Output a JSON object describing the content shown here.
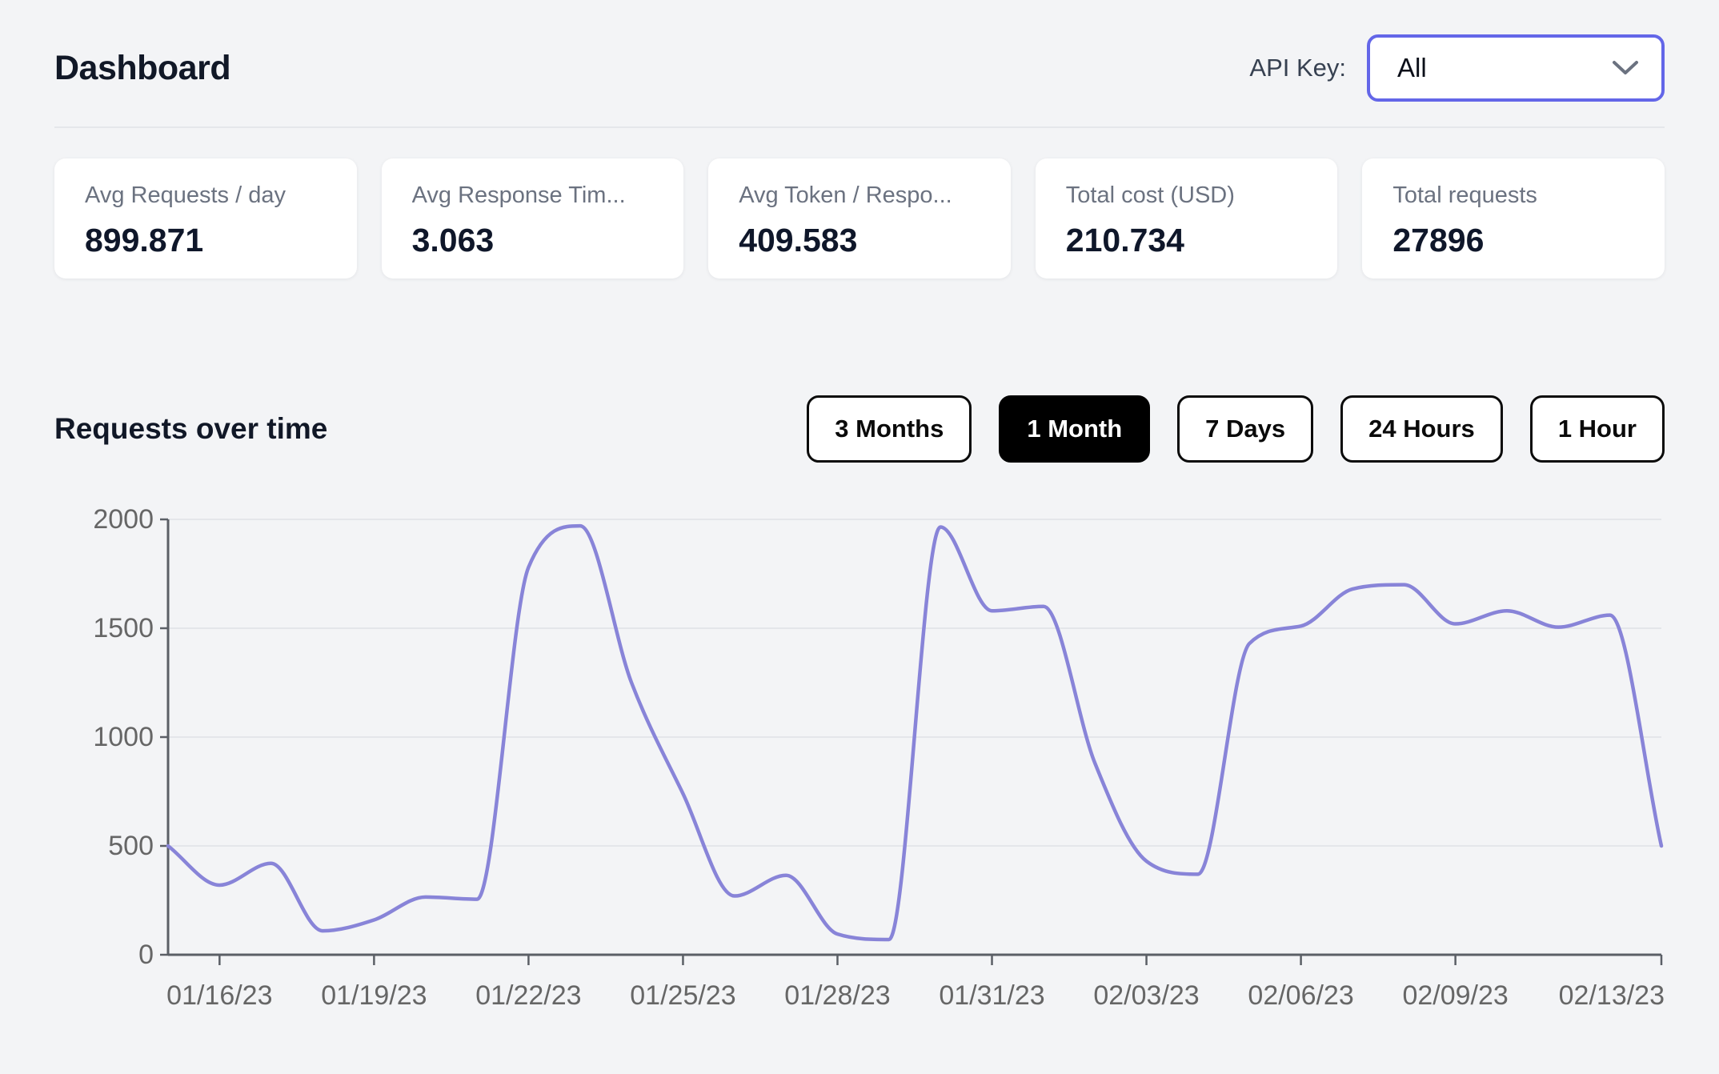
{
  "header": {
    "title": "Dashboard",
    "api_key_label": "API Key:",
    "api_key_value": "All"
  },
  "stats": [
    {
      "label": "Avg Requests / day",
      "value": "899.871"
    },
    {
      "label": "Avg Response Tim...",
      "value": "3.063"
    },
    {
      "label": "Avg Token / Respo...",
      "value": "409.583"
    },
    {
      "label": "Total cost (USD)",
      "value": "210.734"
    },
    {
      "label": "Total requests",
      "value": "27896"
    }
  ],
  "section": {
    "title": "Requests over time"
  },
  "time_buttons": [
    {
      "label": "3 Months",
      "active": false
    },
    {
      "label": "1 Month",
      "active": true
    },
    {
      "label": "7 Days",
      "active": false
    },
    {
      "label": "24 Hours",
      "active": false
    },
    {
      "label": "1 Hour",
      "active": false
    }
  ],
  "chart_data": {
    "type": "line",
    "title": "Requests over time",
    "x": [
      "01/15/23",
      "01/16/23",
      "01/17/23",
      "01/18/23",
      "01/19/23",
      "01/20/23",
      "01/21/23",
      "01/22/23",
      "01/23/23",
      "01/24/23",
      "01/25/23",
      "01/26/23",
      "01/27/23",
      "01/28/23",
      "01/29/23",
      "01/30/23",
      "01/31/23",
      "02/01/23",
      "02/02/23",
      "02/03/23",
      "02/04/23",
      "02/05/23",
      "02/06/23",
      "02/07/23",
      "02/08/23",
      "02/09/23",
      "02/10/23",
      "02/11/23",
      "02/12/23",
      "02/13/23"
    ],
    "series": [
      {
        "name": "requests",
        "values": [
          500,
          320,
          420,
          110,
          160,
          265,
          255,
          1780,
          1970,
          1250,
          740,
          270,
          365,
          95,
          70,
          1965,
          1580,
          1600,
          880,
          430,
          370,
          1430,
          1510,
          1680,
          1700,
          1520,
          1580,
          1505,
          1560,
          500
        ]
      }
    ],
    "xticks": [
      "01/16/23",
      "01/19/23",
      "01/22/23",
      "01/25/23",
      "01/28/23",
      "01/31/23",
      "02/03/23",
      "02/06/23",
      "02/09/23",
      "02/13/23"
    ],
    "yticks": [
      0,
      500,
      1000,
      1500,
      2000
    ],
    "ylim": [
      0,
      2000
    ],
    "grid": true,
    "legend": "none",
    "line_color": "#8884d8",
    "grid_color": "#e4e6ea",
    "axis_color": "#5b5f66",
    "tick_label_color": "#666666"
  }
}
